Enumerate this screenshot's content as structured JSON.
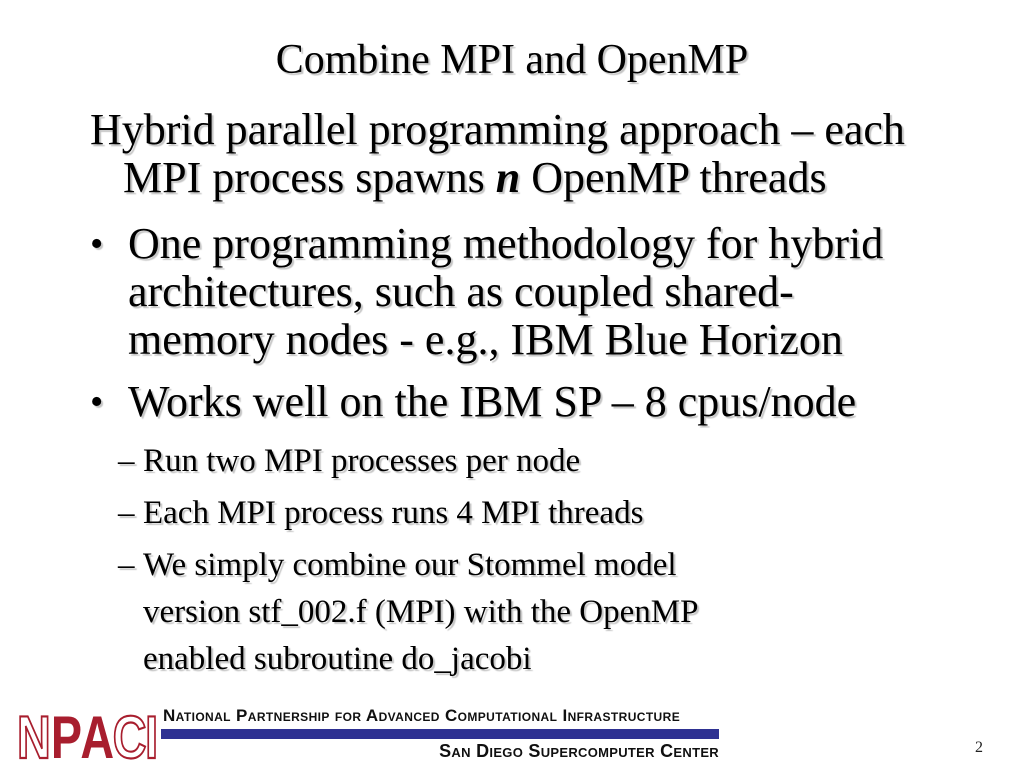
{
  "slide": {
    "title": "Combine MPI and OpenMP",
    "page_number": "2"
  },
  "content": {
    "bullet_char": "•",
    "dash_char": "–",
    "intro": {
      "line1": "Hybrid parallel programming approach – each",
      "line2_pre": "MPI process spawns ",
      "line2_emphasis": "n",
      "line2_post": " OpenMP threads"
    },
    "bullet1": {
      "lines": [
        "One programming methodology for hybrid",
        "architectures, such as coupled shared-",
        "memory nodes - e.g., IBM Blue Horizon"
      ]
    },
    "bullet2": {
      "line": "Works well on the IBM SP – 8 cpus/node"
    },
    "sub_bullets": {
      "item1": "Run two MPI processes per node",
      "item2": "Each MPI process runs 4 MPI threads",
      "item3_lines": [
        "We simply combine our Stommel model",
        "version stf_002.f (MPI) with the OpenMP",
        "enabled subroutine do_jacobi"
      ]
    }
  },
  "footer": {
    "logo_letters": [
      "N",
      "P",
      "A",
      "C",
      "I"
    ],
    "org_line": "National Partnership for Advanced Computational Infrastructure",
    "center_line": "San Diego Supercomputer Center",
    "bar_color": "#2e3192",
    "logo_red": "#a81e2e"
  }
}
